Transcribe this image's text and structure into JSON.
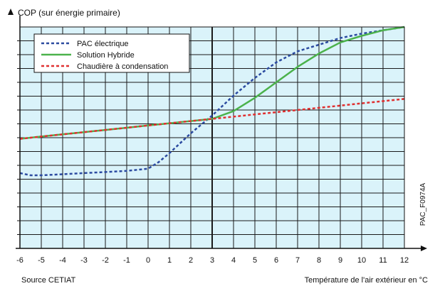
{
  "chart_data": {
    "type": "line",
    "ylabel": "COP (sur énergie primaire)",
    "xlabel": "Température de l'air extérieur en °C",
    "source": "Source CETIAT",
    "code": "PAC_F0974A",
    "x_ticks": [
      -6,
      -5,
      -4,
      -3,
      -2,
      -1,
      0,
      1,
      2,
      3,
      4,
      5,
      6,
      7,
      8,
      9,
      10,
      11,
      12
    ],
    "xlim": [
      -6,
      12
    ],
    "ylim": [
      0,
      10
    ],
    "grid": true,
    "plot_background": "#daf3fa",
    "legend_position": "top-left",
    "series": [
      {
        "name": "PAC électrique",
        "color": "#2b4aa0",
        "dash": "dotted",
        "x": [
          -6,
          -5.5,
          -5,
          -4,
          -3,
          -2,
          -1,
          0,
          0.5,
          1,
          2,
          3,
          4,
          5,
          6,
          7,
          8,
          9,
          10,
          11,
          12
        ],
        "y": [
          3.4,
          3.3,
          3.3,
          3.35,
          3.4,
          3.45,
          3.5,
          3.6,
          3.9,
          4.3,
          5.2,
          6.0,
          6.9,
          7.7,
          8.4,
          8.9,
          9.2,
          9.5,
          9.7,
          9.85,
          10.0
        ]
      },
      {
        "name": "Solution Hybride",
        "color": "#4bb24b",
        "dash": "solid",
        "x": [
          -6,
          -5,
          -4,
          -3,
          -2,
          -1,
          0,
          1,
          2,
          3,
          4,
          5,
          6,
          7,
          8,
          9,
          10,
          11,
          12
        ],
        "y": [
          4.95,
          5.05,
          5.15,
          5.25,
          5.35,
          5.45,
          5.55,
          5.65,
          5.75,
          5.85,
          6.2,
          6.8,
          7.5,
          8.2,
          8.8,
          9.3,
          9.6,
          9.85,
          10.0
        ]
      },
      {
        "name": "Chaudière à condensation",
        "color": "#e03030",
        "dash": "dotted",
        "x": [
          -6,
          -5,
          -4,
          -3,
          -2,
          -1,
          0,
          1,
          2,
          3,
          4,
          5,
          6,
          7,
          8,
          9,
          10,
          11,
          12
        ],
        "y": [
          4.95,
          5.05,
          5.15,
          5.25,
          5.35,
          5.45,
          5.55,
          5.65,
          5.75,
          5.85,
          5.95,
          6.05,
          6.15,
          6.25,
          6.35,
          6.45,
          6.55,
          6.65,
          6.75
        ]
      }
    ]
  }
}
